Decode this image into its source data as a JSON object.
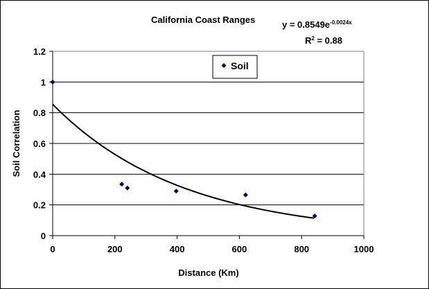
{
  "chart_data": {
    "type": "scatter",
    "title": "California Coast Ranges",
    "equation_prefix": "y = 0.8549e",
    "equation_exponent": "-0.0024x",
    "r2_prefix": "R",
    "r2_sup": "2",
    "r2_suffix": " = 0.88",
    "xlabel": "Distance (Km)",
    "ylabel": "Soil Correlation",
    "xlim": [
      0,
      1000
    ],
    "ylim": [
      0,
      1.2
    ],
    "xticks": [
      0,
      200,
      400,
      600,
      800,
      1000
    ],
    "yticks": [
      0,
      0.2,
      0.4,
      0.6,
      0.8,
      1,
      1.2
    ],
    "xtick_labels": [
      "0",
      "200",
      "400",
      "600",
      "800",
      "1000"
    ],
    "ytick_labels": [
      "0",
      "0.2",
      "0.4",
      "0.6",
      "0.8",
      "1",
      "1.2"
    ],
    "grid": "horizontal",
    "legend_position": "top-center",
    "series": [
      {
        "name": "Soil",
        "color": "#00007f",
        "marker": "diamond",
        "x": [
          0,
          222,
          240,
          397,
          620,
          842
        ],
        "y": [
          1.0,
          0.335,
          0.31,
          0.29,
          0.265,
          0.128
        ]
      }
    ],
    "trendline": {
      "type": "exponential",
      "a": 0.8549,
      "b": -0.0024,
      "x_range": [
        0,
        840
      ],
      "color": "#000000"
    }
  }
}
